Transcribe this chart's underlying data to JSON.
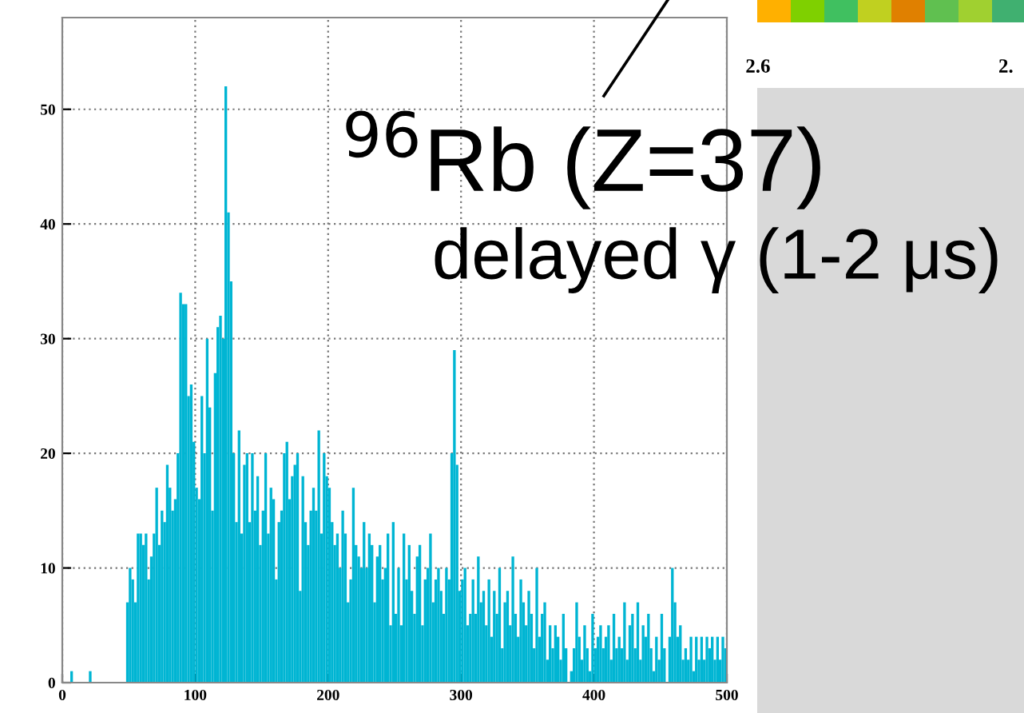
{
  "chart_data": {
    "type": "histogram",
    "bins": [
      0,
      2,
      4,
      6,
      8,
      10,
      12,
      14,
      16,
      18,
      20,
      22,
      24,
      26,
      28,
      30,
      32,
      34,
      36,
      38,
      40,
      42,
      44,
      46,
      48,
      50,
      52,
      54,
      56,
      58,
      60,
      62,
      64,
      66,
      68,
      70,
      72,
      74,
      76,
      78,
      80,
      82,
      84,
      86,
      88,
      90,
      92,
      94,
      96,
      98,
      100,
      102,
      104,
      106,
      108,
      110,
      112,
      114,
      116,
      118,
      120,
      122,
      124,
      126,
      128,
      130,
      132,
      134,
      136,
      138,
      140,
      142,
      144,
      146,
      148,
      150,
      152,
      154,
      156,
      158,
      160,
      162,
      164,
      166,
      168,
      170,
      172,
      174,
      176,
      178,
      180,
      182,
      184,
      186,
      188,
      190,
      192,
      194,
      196,
      198,
      200,
      202,
      204,
      206,
      208,
      210,
      212,
      214,
      216,
      218,
      220,
      222,
      224,
      226,
      228,
      230,
      232,
      234,
      236,
      238,
      240,
      242,
      244,
      246,
      248,
      250,
      252,
      254,
      256,
      258,
      260,
      262,
      264,
      266,
      268,
      270,
      272,
      274,
      276,
      278,
      280,
      282,
      284,
      286,
      288,
      290,
      292,
      294,
      296,
      298,
      300,
      302,
      304,
      306,
      308,
      310,
      312,
      314,
      316,
      318,
      320,
      322,
      324,
      326,
      328,
      330,
      332,
      334,
      336,
      338,
      340,
      342,
      344,
      346,
      348,
      350,
      352,
      354,
      356,
      358,
      360,
      362,
      364,
      366,
      368,
      370,
      372,
      374,
      376,
      378,
      380,
      382,
      384,
      386,
      388,
      390,
      392,
      394,
      396,
      398,
      400,
      402,
      404,
      406,
      408,
      410,
      412,
      414,
      416,
      418,
      420,
      422,
      424,
      426,
      428,
      430,
      432,
      434,
      436,
      438,
      440,
      442,
      444,
      446,
      448,
      450,
      452,
      454,
      456,
      458,
      460,
      462,
      464,
      466,
      468,
      470,
      472,
      474,
      476,
      478,
      480,
      482,
      484,
      486,
      488,
      490,
      492,
      494,
      496,
      498,
      500
    ],
    "values": [
      0,
      0,
      0,
      1,
      0,
      0,
      0,
      0,
      0,
      0,
      1,
      0,
      0,
      0,
      0,
      0,
      0,
      0,
      0,
      0,
      0,
      0,
      0,
      0,
      7,
      10,
      9,
      7,
      13,
      13,
      12,
      13,
      9,
      11,
      13,
      17,
      12,
      15,
      14,
      19,
      17,
      15,
      16,
      20,
      34,
      33,
      33,
      25,
      26,
      21,
      17,
      16,
      25,
      20,
      30,
      24,
      15,
      27,
      31,
      32,
      30,
      52,
      41,
      35,
      20,
      14,
      22,
      13,
      19,
      20,
      14,
      20,
      15,
      18,
      12,
      15,
      20,
      13,
      17,
      16,
      9,
      14,
      15,
      20,
      21,
      16,
      18,
      19,
      20,
      8,
      18,
      14,
      12,
      15,
      17,
      15,
      22,
      13,
      20,
      18,
      17,
      14,
      12,
      13,
      10,
      15,
      13,
      7,
      9,
      17,
      12,
      11,
      10,
      14,
      10,
      13,
      12,
      7,
      11,
      12,
      9,
      10,
      13,
      5,
      14,
      6,
      10,
      5,
      13,
      9,
      12,
      8,
      6,
      11,
      12,
      5,
      9,
      10,
      13,
      7,
      9,
      10,
      8,
      6,
      10,
      9,
      20,
      29,
      19,
      8,
      9,
      10,
      5,
      6,
      9,
      6,
      11,
      7,
      8,
      5,
      9,
      4,
      8,
      6,
      10,
      3,
      7,
      8,
      5,
      11,
      6,
      4,
      9,
      7,
      5,
      8,
      6,
      3,
      10,
      4,
      6,
      7,
      2,
      5,
      3,
      5,
      4,
      2,
      6,
      3,
      0,
      1,
      3,
      7,
      4,
      2,
      5,
      3,
      1,
      6,
      3,
      4,
      5,
      3,
      4,
      5,
      2,
      6,
      3,
      4,
      3,
      7,
      2,
      5,
      6,
      3,
      7,
      2,
      5,
      4,
      6,
      3,
      1,
      4,
      2,
      6,
      3,
      0,
      4,
      10,
      7,
      4,
      5,
      2,
      3,
      2,
      4,
      1,
      4,
      2,
      4,
      2,
      4,
      3,
      4,
      2,
      4,
      2,
      4,
      3
    ],
    "color": "#00b5d3",
    "xlim": [
      0,
      500
    ],
    "xticks": [
      0,
      100,
      200,
      300,
      400,
      500
    ],
    "ylim": [
      0,
      58
    ],
    "yticks": [
      0,
      10,
      20,
      30,
      40,
      50
    ],
    "grid": true,
    "legend": false,
    "annotations": [
      "$^{96}$Rb (Z=37)",
      "delayed γ (1-2 μs)",
      "2.6",
      "2."
    ]
  }
}
